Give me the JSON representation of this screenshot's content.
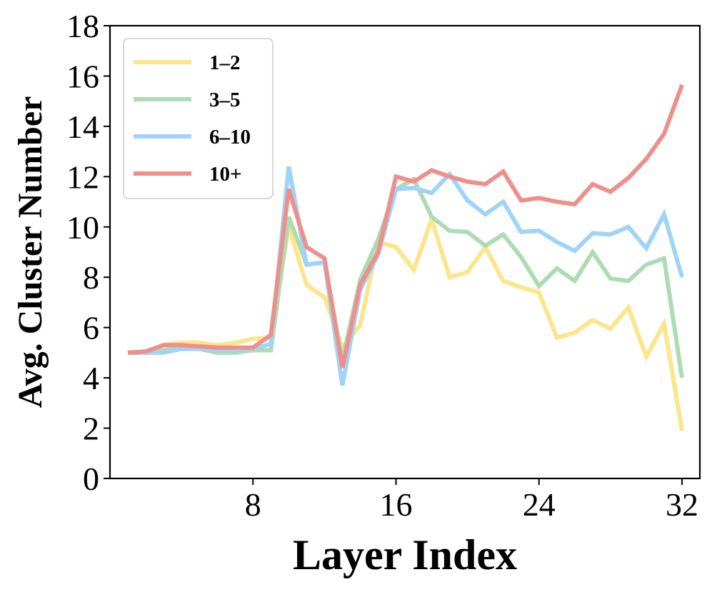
{
  "chart_data": {
    "type": "line",
    "xlabel": "Layer Index",
    "ylabel": "Avg. Cluster Number",
    "xlim": [
      0,
      33
    ],
    "ylim": [
      0,
      18
    ],
    "xticks": [
      8,
      16,
      24,
      32
    ],
    "yticks": [
      0,
      2,
      4,
      6,
      8,
      10,
      12,
      14,
      16,
      18
    ],
    "grid": false,
    "legend_position": "top-left",
    "x": [
      1,
      2,
      3,
      4,
      5,
      6,
      7,
      8,
      9,
      10,
      11,
      12,
      13,
      14,
      15,
      16,
      17,
      18,
      19,
      20,
      21,
      22,
      23,
      24,
      25,
      26,
      27,
      28,
      29,
      30,
      31,
      32
    ],
    "series": [
      {
        "name": "1–2",
        "color": "#fce58a",
        "values": [
          5.0,
          5.05,
          5.3,
          5.4,
          5.4,
          5.3,
          5.4,
          5.55,
          5.6,
          10.0,
          7.7,
          7.2,
          5.2,
          6.1,
          9.4,
          9.2,
          8.3,
          10.3,
          8.0,
          8.2,
          9.2,
          7.85,
          7.6,
          7.4,
          5.6,
          5.8,
          6.3,
          5.95,
          6.8,
          4.85,
          6.15,
          1.9
        ]
      },
      {
        "name": "3–5",
        "color": "#addcb3",
        "values": [
          5.0,
          5.0,
          5.1,
          5.2,
          5.15,
          5.0,
          5.0,
          5.1,
          5.1,
          10.4,
          8.5,
          8.6,
          4.7,
          7.9,
          9.5,
          11.5,
          11.9,
          10.4,
          9.85,
          9.8,
          9.25,
          9.7,
          8.8,
          7.65,
          8.35,
          7.85,
          9.0,
          7.95,
          7.85,
          8.5,
          8.75,
          4.0
        ]
      },
      {
        "name": "6–10",
        "color": "#9fd4f8",
        "values": [
          5.0,
          5.0,
          5.0,
          5.15,
          5.15,
          5.1,
          5.1,
          5.15,
          5.35,
          12.4,
          8.5,
          8.6,
          3.7,
          7.5,
          8.9,
          11.5,
          11.55,
          11.35,
          12.1,
          11.05,
          10.5,
          11.0,
          9.8,
          9.85,
          9.4,
          9.05,
          9.75,
          9.7,
          10.0,
          9.15,
          10.5,
          8.0
        ]
      },
      {
        "name": "10+",
        "color": "#ef8f8b",
        "values": [
          5.0,
          5.05,
          5.3,
          5.3,
          5.25,
          5.2,
          5.2,
          5.2,
          5.7,
          11.5,
          9.2,
          8.75,
          4.4,
          7.7,
          9.0,
          12.0,
          11.8,
          12.25,
          12.0,
          11.8,
          11.7,
          12.2,
          11.05,
          11.15,
          11.0,
          10.9,
          11.7,
          11.4,
          11.95,
          12.7,
          13.7,
          15.65
        ]
      }
    ]
  }
}
